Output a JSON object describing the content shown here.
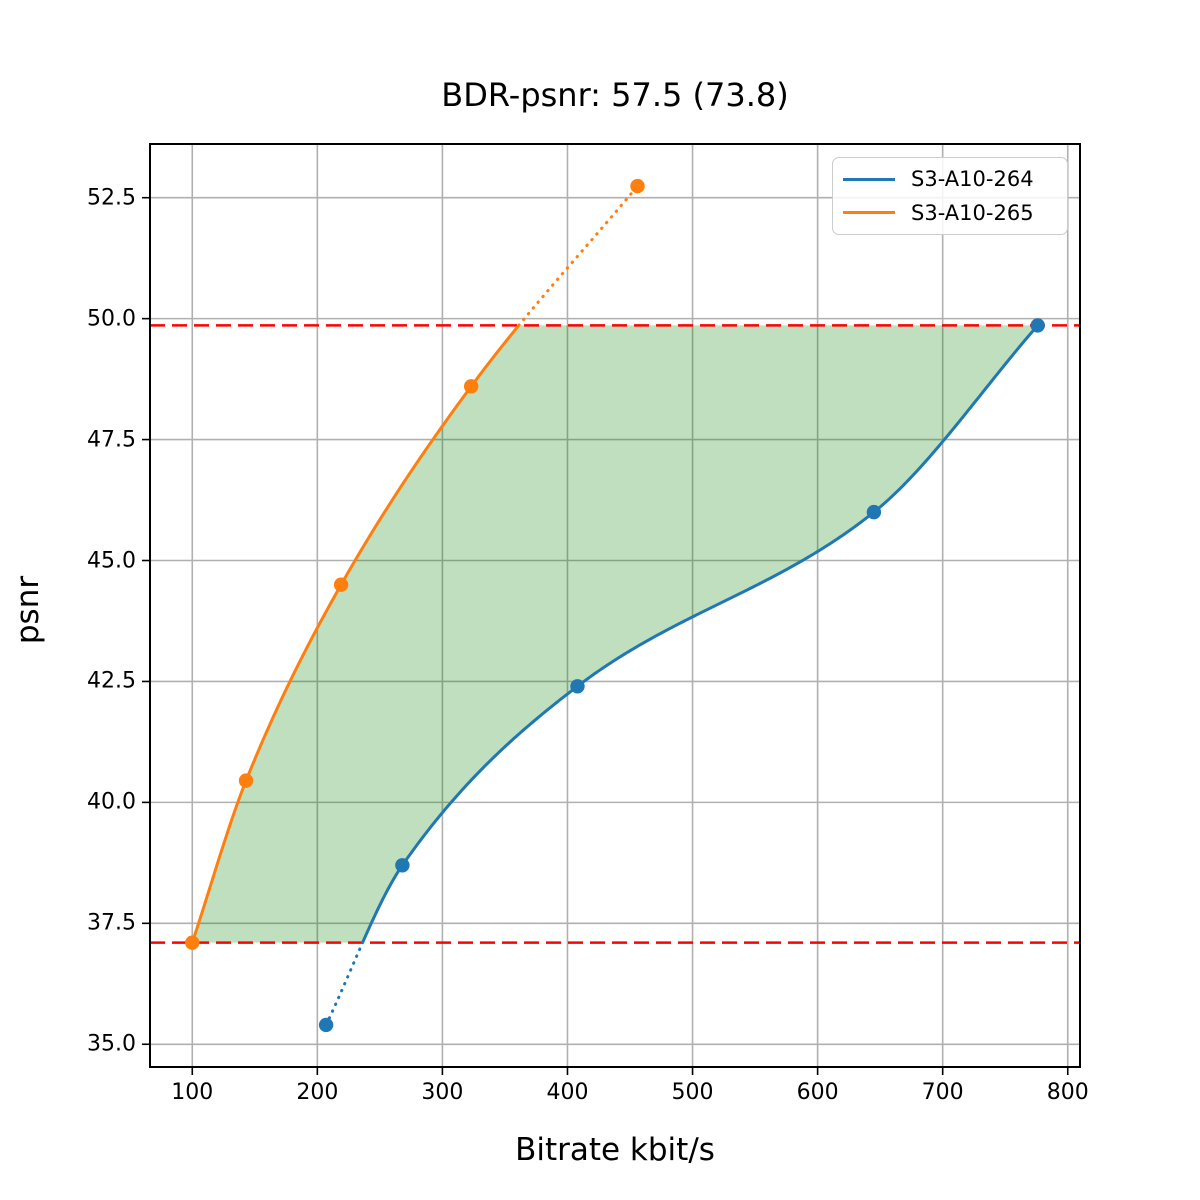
{
  "chart_data": {
    "type": "line",
    "title": "BDR-psnr: 57.5 (73.8)",
    "xlabel": "Bitrate kbit/s",
    "ylabel": "psnr",
    "xlim": [
      66.2,
      809.8
    ],
    "ylim": [
      34.53,
      53.61
    ],
    "x_ticks": [
      100,
      200,
      300,
      400,
      500,
      600,
      700,
      800
    ],
    "y_ticks": [
      35.0,
      37.5,
      40.0,
      42.5,
      45.0,
      47.5,
      50.0,
      52.5
    ],
    "grid": true,
    "grid_color": "#b0b0b0",
    "legend_position": "upper right",
    "series": [
      {
        "name": "S3-A10-264",
        "color": "#1f77b4",
        "points": [
          [
            207,
            35.4
          ],
          [
            268,
            38.7
          ],
          [
            408,
            42.4
          ],
          [
            645,
            46.0
          ],
          [
            776,
            49.86
          ]
        ]
      },
      {
        "name": "S3-A10-265",
        "color": "#ff7f0e",
        "points": [
          [
            100,
            37.1
          ],
          [
            143,
            40.45
          ],
          [
            219,
            44.5
          ],
          [
            323,
            48.6
          ],
          [
            456,
            52.74
          ]
        ]
      }
    ],
    "overlap_range_psnr": [
      37.1,
      49.86
    ],
    "hlines": {
      "values": [
        37.1,
        49.86
      ],
      "color": "#ff0000",
      "style": "dashed"
    },
    "fill_between_color": "rgba(0,128,0,0.25)"
  }
}
